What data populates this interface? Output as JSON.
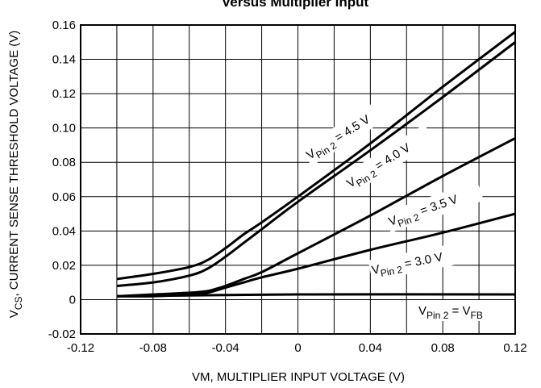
{
  "chart_data": {
    "type": "line",
    "title": "Versus Multiplier Input",
    "xlabel": "VM, MULTIPLIER INPUT VOLTAGE (V)",
    "ylabel": {
      "prefix": "V",
      "sub": "CS",
      "rest": ", CURRENT SENSE THRESHOLD VOLTAGE (V)"
    },
    "xlim": [
      -0.12,
      0.12
    ],
    "ylim": [
      -0.02,
      0.16
    ],
    "grid": true,
    "x_ticks": [
      "-0.12",
      "-0.08",
      "-0.04",
      "0",
      "0.04",
      "0.08",
      "0.12"
    ],
    "y_ticks": [
      "-0.02",
      "0",
      "0.02",
      "0.04",
      "0.06",
      "0.08",
      "0.10",
      "0.12",
      "0.14",
      "0.16"
    ],
    "series": [
      {
        "name": "V Pin 2 = 4.5 V",
        "label_parts": [
          "V",
          "Pin 2",
          " = 4.5 V"
        ],
        "x": [
          -0.1,
          -0.08,
          -0.06,
          -0.05,
          -0.04,
          -0.03,
          -0.02,
          0,
          0.04,
          0.08,
          0.12
        ],
        "y": [
          0.012,
          0.015,
          0.019,
          0.023,
          0.03,
          0.038,
          0.045,
          0.06,
          0.091,
          0.124,
          0.156
        ]
      },
      {
        "name": "V Pin 2 = 4.0 V",
        "label_parts": [
          "V",
          "Pin 2",
          " = 4.0 V"
        ],
        "x": [
          -0.1,
          -0.08,
          -0.06,
          -0.05,
          -0.04,
          -0.03,
          -0.02,
          0,
          0.04,
          0.08,
          0.12
        ],
        "y": [
          0.008,
          0.01,
          0.014,
          0.018,
          0.025,
          0.033,
          0.041,
          0.057,
          0.087,
          0.118,
          0.15
        ]
      },
      {
        "name": "V Pin 2 = 3.5 V",
        "label_parts": [
          "V",
          "Pin 2",
          " = 3.5 V"
        ],
        "x": [
          -0.1,
          -0.08,
          -0.06,
          -0.05,
          -0.04,
          -0.03,
          -0.02,
          0,
          0.04,
          0.08,
          0.12
        ],
        "y": [
          0.002,
          0.003,
          0.004,
          0.005,
          0.008,
          0.012,
          0.016,
          0.027,
          0.049,
          0.072,
          0.094
        ]
      },
      {
        "name": "V Pin 2 = 3.0 V",
        "label_parts": [
          "V",
          "Pin 2",
          " = 3.0 V"
        ],
        "x": [
          -0.1,
          -0.08,
          -0.06,
          -0.05,
          -0.04,
          -0.03,
          -0.02,
          0,
          0.04,
          0.08,
          0.12
        ],
        "y": [
          0.002,
          0.002,
          0.003,
          0.004,
          0.007,
          0.01,
          0.013,
          0.018,
          0.029,
          0.039,
          0.05
        ]
      },
      {
        "name": "V Pin 2 = V FB",
        "label_parts": [
          "V",
          "Pin 2",
          " = V",
          "FB"
        ],
        "x": [
          -0.1,
          0,
          0.12
        ],
        "y": [
          0.002,
          0.003,
          0.003
        ]
      }
    ]
  }
}
